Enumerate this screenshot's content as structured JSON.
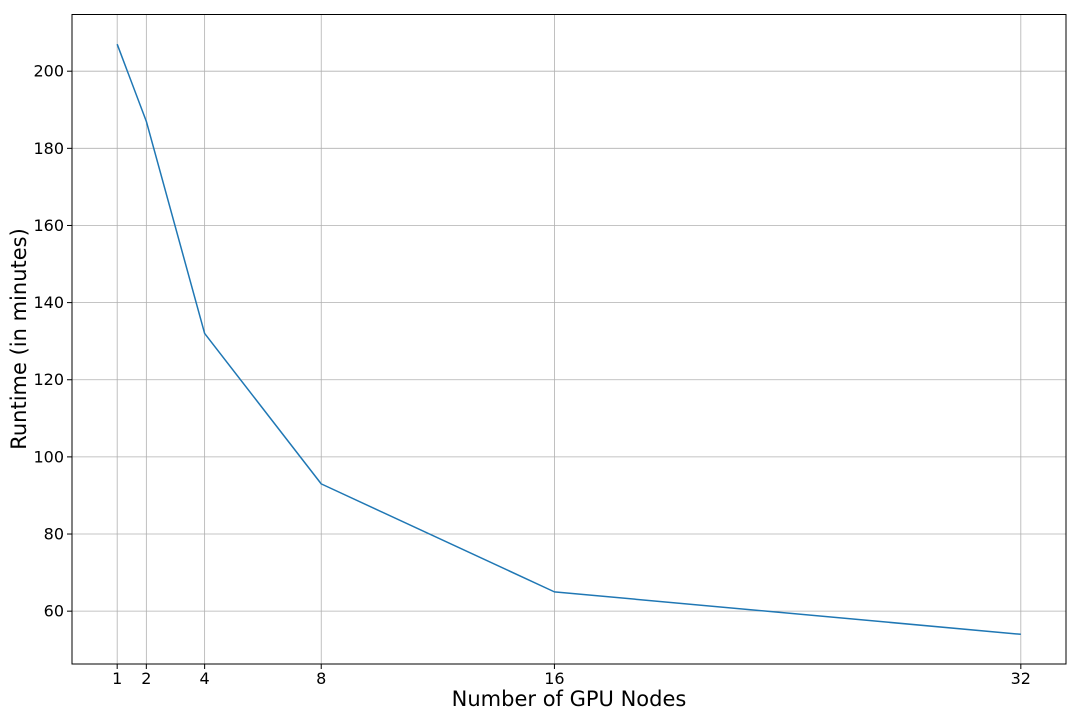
{
  "chart_data": {
    "type": "line",
    "title": "",
    "xlabel": "Number of GPU Nodes",
    "ylabel": "Runtime (in minutes)",
    "x": [
      1,
      2,
      4,
      8,
      16,
      32
    ],
    "series": [
      {
        "values": [
          207,
          187,
          132,
          93,
          65,
          54
        ]
      }
    ],
    "xticks": [
      1,
      2,
      4,
      8,
      16,
      32
    ],
    "yticks": [
      60,
      80,
      100,
      120,
      140,
      160,
      180,
      200
    ],
    "xlim": [
      -0.55,
      33.55
    ],
    "ylim": [
      46.3,
      214.7
    ],
    "grid": true,
    "legend": "none",
    "colors": {
      "line": "#1f77b4",
      "grid": "#b0b0b0",
      "frame": "#000000"
    }
  }
}
